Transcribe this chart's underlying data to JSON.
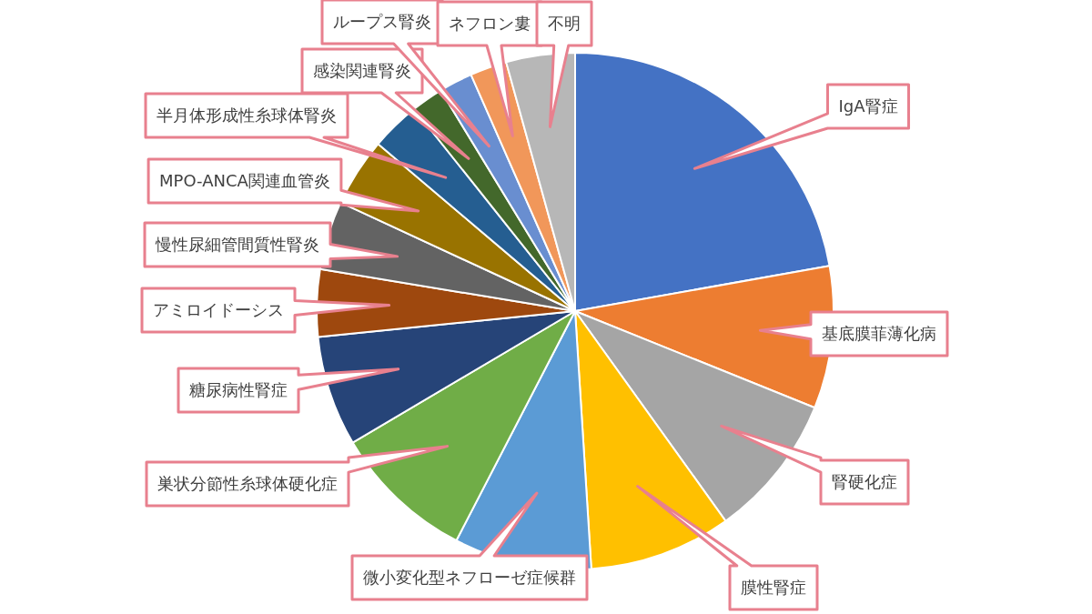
{
  "chart_data": {
    "type": "pie",
    "categories": [
      "IgA腎症",
      "基底膜菲薄化病",
      "腎硬化症",
      "膜性腎症",
      "微小変化型ネフローゼ症候群",
      "巣状分節性糸球体硬化症",
      "糖尿病性腎症",
      "アミロイドーシス",
      "慢性尿細管間質性腎炎",
      "MPO-ANCA関連血管炎",
      "半月体形成性糸球体腎炎",
      "感染関連腎炎",
      "ループス腎炎",
      "ネフロン婁",
      "不明"
    ],
    "values": [
      22.2,
      8.9,
      9.0,
      8.9,
      8.6,
      8.9,
      6.9,
      4.2,
      4.3,
      4.3,
      3.1,
      2.0,
      2.1,
      2.3,
      4.3
    ],
    "colors": [
      "#4472c4",
      "#ed7d31",
      "#a5a5a5",
      "#ffc000",
      "#5b9bd5",
      "#70ad47",
      "#264478",
      "#9e480e",
      "#636363",
      "#997300",
      "#255e91",
      "#43682b",
      "#698ed0",
      "#f1975a",
      "#b7b7b7"
    ],
    "legend": false
  }
}
